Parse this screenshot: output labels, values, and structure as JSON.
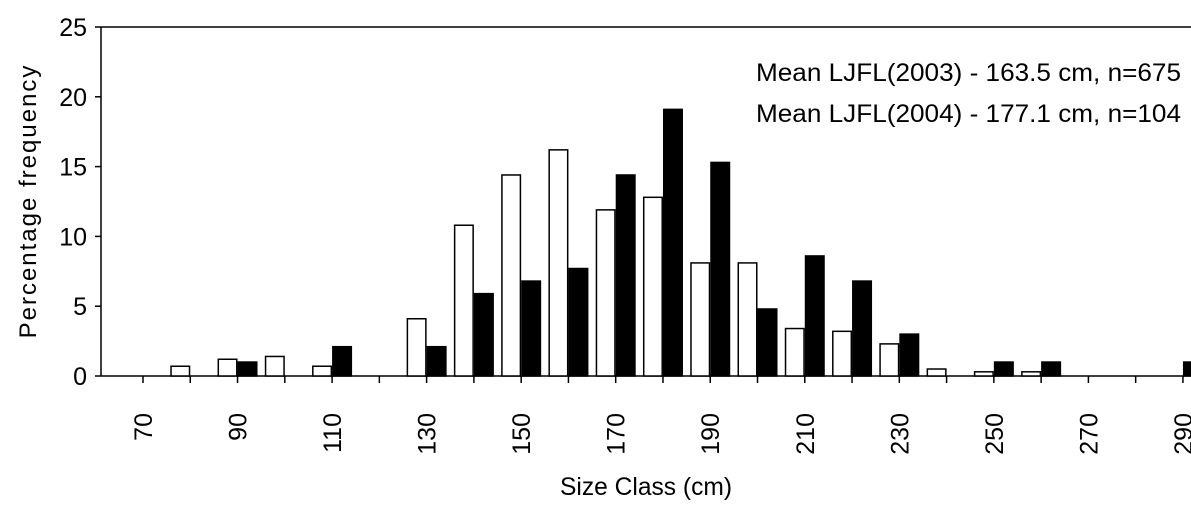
{
  "chart_data": {
    "type": "bar",
    "xlabel": "Size Class (cm)",
    "ylabel": "Percentage frequency",
    "ylim": [
      0,
      25
    ],
    "yticks": [
      0,
      5,
      10,
      15,
      20,
      25
    ],
    "xlim": [
      70,
      290
    ],
    "bin_width": 10,
    "xtick_labels": [
      "70",
      "90",
      "110",
      "130",
      "150",
      "170",
      "190",
      "210",
      "230",
      "250",
      "270",
      "290"
    ],
    "annotations": [
      "Mean LJFL(2003) - 163.5 cm, n=675",
      "Mean LJFL(2004) - 177.1 cm, n=104"
    ],
    "grid": false,
    "legend": "none",
    "series": [
      {
        "year": "2003",
        "color": "#ffffff",
        "stroke": "#000000",
        "x": [
          80,
          90,
          100,
          110,
          120,
          130,
          140,
          150,
          160,
          170,
          180,
          190,
          200,
          210,
          220,
          230,
          240,
          250,
          260,
          270,
          280,
          290
        ],
        "values": [
          0.7,
          1.2,
          1.4,
          0.7,
          0,
          4.1,
          10.8,
          14.4,
          16.2,
          11.9,
          12.8,
          8.1,
          8.1,
          3.4,
          3.2,
          2.3,
          0.5,
          0.3,
          0.3,
          0,
          0,
          0
        ]
      },
      {
        "year": "2004",
        "color": "#000000",
        "stroke": "#000000",
        "x": [
          80,
          90,
          100,
          110,
          120,
          130,
          140,
          150,
          160,
          170,
          180,
          190,
          200,
          210,
          220,
          230,
          240,
          250,
          260,
          270,
          280,
          290
        ],
        "values": [
          0,
          1.0,
          0,
          2.1,
          0,
          2.1,
          5.9,
          6.8,
          7.7,
          14.4,
          19.1,
          15.3,
          4.8,
          8.6,
          6.8,
          3.0,
          0,
          1.0,
          1.0,
          0,
          0,
          1.0
        ]
      }
    ]
  }
}
